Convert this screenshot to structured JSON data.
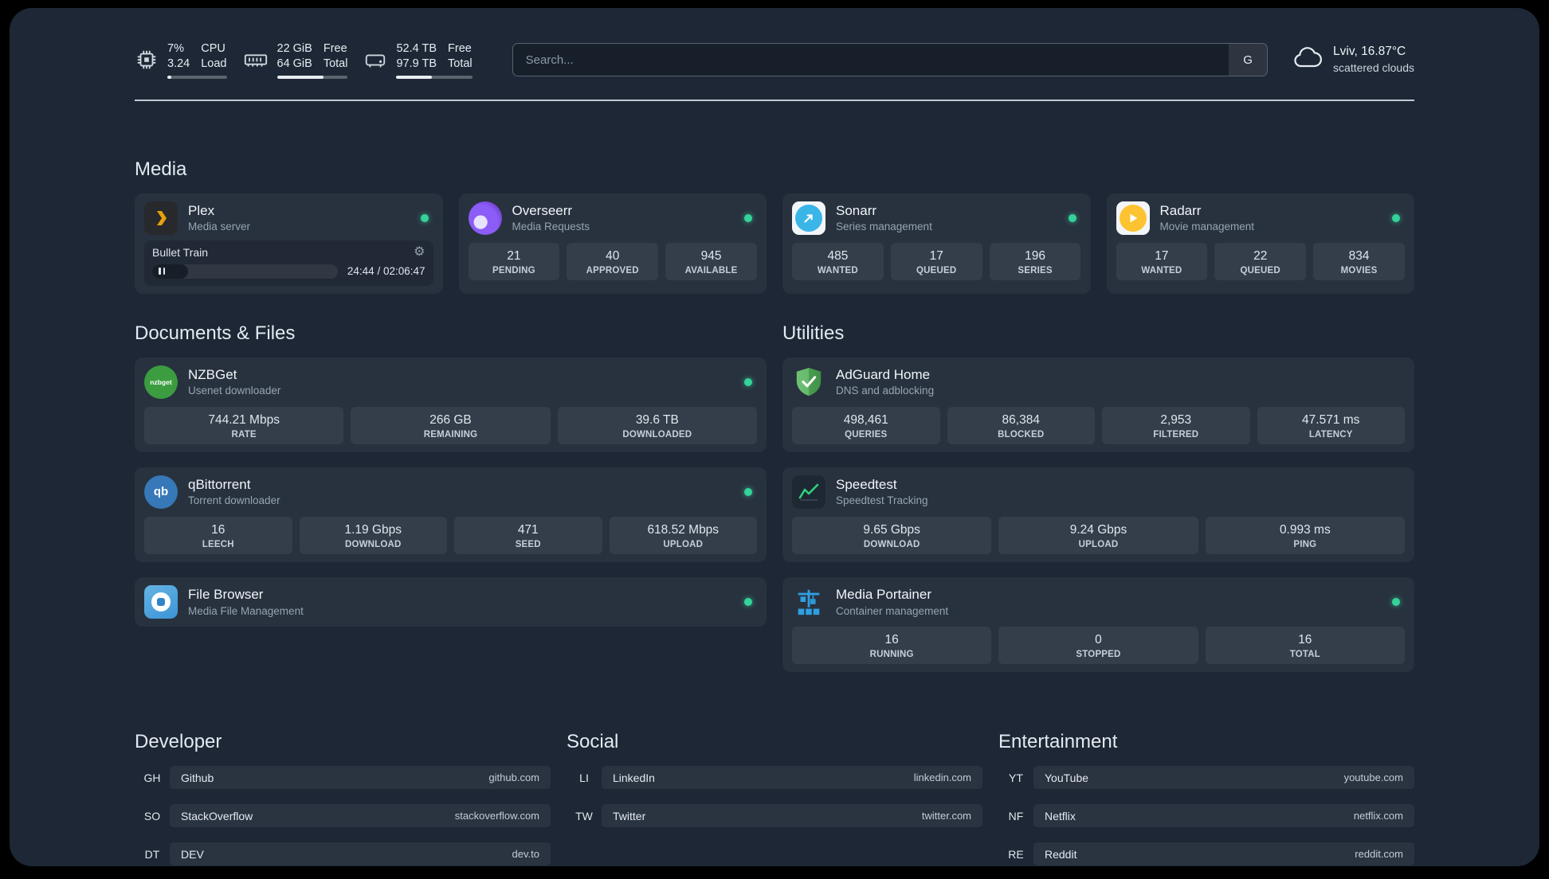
{
  "colors": {
    "status_online": "#34d399",
    "background": "#1d2735",
    "accent_amber": "#e5a00d"
  },
  "topbar": {
    "resources": {
      "cpu": {
        "value_top": "7%",
        "value_bottom": "3.24",
        "label_top": "CPU",
        "label_bottom": "Load",
        "bar_percent": 7
      },
      "memory": {
        "value_top": "22 GiB",
        "value_bottom": "64 GiB",
        "label_top": "Free",
        "label_bottom": "Total",
        "bar_percent": 66
      },
      "disk": {
        "value_top": "52.4 TB",
        "value_bottom": "97.9 TB",
        "label_top": "Free",
        "label_bottom": "Total",
        "bar_percent": 47
      }
    },
    "search": {
      "placeholder": "Search...",
      "provider_label": "G"
    },
    "weather": {
      "location": "Lviv, 16.87°C",
      "condition": "scattered clouds"
    }
  },
  "media": {
    "title": "Media",
    "plex": {
      "name": "Plex",
      "description": "Media server",
      "player": {
        "title": "Bullet Train",
        "time": "24:44 / 02:06:47",
        "progress_percent": 19.5
      }
    },
    "overseerr": {
      "name": "Overseerr",
      "description": "Media Requests",
      "stats": [
        {
          "value": "21",
          "label": "PENDING"
        },
        {
          "value": "40",
          "label": "APPROVED"
        },
        {
          "value": "945",
          "label": "AVAILABLE"
        }
      ]
    },
    "sonarr": {
      "name": "Sonarr",
      "description": "Series management",
      "stats": [
        {
          "value": "485",
          "label": "WANTED"
        },
        {
          "value": "17",
          "label": "QUEUED"
        },
        {
          "value": "196",
          "label": "SERIES"
        }
      ]
    },
    "radarr": {
      "name": "Radarr",
      "description": "Movie management",
      "stats": [
        {
          "value": "17",
          "label": "WANTED"
        },
        {
          "value": "22",
          "label": "QUEUED"
        },
        {
          "value": "834",
          "label": "MOVIES"
        }
      ]
    }
  },
  "documents": {
    "title": "Documents & Files",
    "nzbget": {
      "name": "NZBGet",
      "description": "Usenet downloader",
      "stats": [
        {
          "value": "744.21 Mbps",
          "label": "RATE"
        },
        {
          "value": "266 GB",
          "label": "REMAINING"
        },
        {
          "value": "39.6 TB",
          "label": "DOWNLOADED"
        }
      ]
    },
    "qbittorrent": {
      "name": "qBittorrent",
      "description": "Torrent downloader",
      "stats": [
        {
          "value": "16",
          "label": "LEECH"
        },
        {
          "value": "1.19 Gbps",
          "label": "DOWNLOAD"
        },
        {
          "value": "471",
          "label": "SEED"
        },
        {
          "value": "618.52 Mbps",
          "label": "UPLOAD"
        }
      ]
    },
    "filebrowser": {
      "name": "File Browser",
      "description": "Media File Management"
    }
  },
  "utilities": {
    "title": "Utilities",
    "adguard": {
      "name": "AdGuard Home",
      "description": "DNS and adblocking",
      "stats": [
        {
          "value": "498,461",
          "label": "QUERIES"
        },
        {
          "value": "86,384",
          "label": "BLOCKED"
        },
        {
          "value": "2,953",
          "label": "FILTERED"
        },
        {
          "value": "47.571 ms",
          "label": "LATENCY"
        }
      ]
    },
    "speedtest": {
      "name": "Speedtest",
      "description": "Speedtest Tracking",
      "stats": [
        {
          "value": "9.65 Gbps",
          "label": "DOWNLOAD"
        },
        {
          "value": "9.24 Gbps",
          "label": "UPLOAD"
        },
        {
          "value": "0.993 ms",
          "label": "PING"
        }
      ]
    },
    "portainer": {
      "name": "Media Portainer",
      "description": "Container management",
      "stats": [
        {
          "value": "16",
          "label": "RUNNING"
        },
        {
          "value": "0",
          "label": "STOPPED"
        },
        {
          "value": "16",
          "label": "TOTAL"
        }
      ]
    }
  },
  "bookmarks": {
    "developer": {
      "title": "Developer",
      "items": [
        {
          "abbr": "GH",
          "name": "Github",
          "url": "github.com"
        },
        {
          "abbr": "SO",
          "name": "StackOverflow",
          "url": "stackoverflow.com"
        },
        {
          "abbr": "DT",
          "name": "DEV",
          "url": "dev.to"
        }
      ]
    },
    "social": {
      "title": "Social",
      "items": [
        {
          "abbr": "LI",
          "name": "LinkedIn",
          "url": "linkedin.com"
        },
        {
          "abbr": "TW",
          "name": "Twitter",
          "url": "twitter.com"
        }
      ]
    },
    "entertainment": {
      "title": "Entertainment",
      "items": [
        {
          "abbr": "YT",
          "name": "YouTube",
          "url": "youtube.com"
        },
        {
          "abbr": "NF",
          "name": "Netflix",
          "url": "netflix.com"
        },
        {
          "abbr": "RE",
          "name": "Reddit",
          "url": "reddit.com"
        }
      ]
    }
  }
}
